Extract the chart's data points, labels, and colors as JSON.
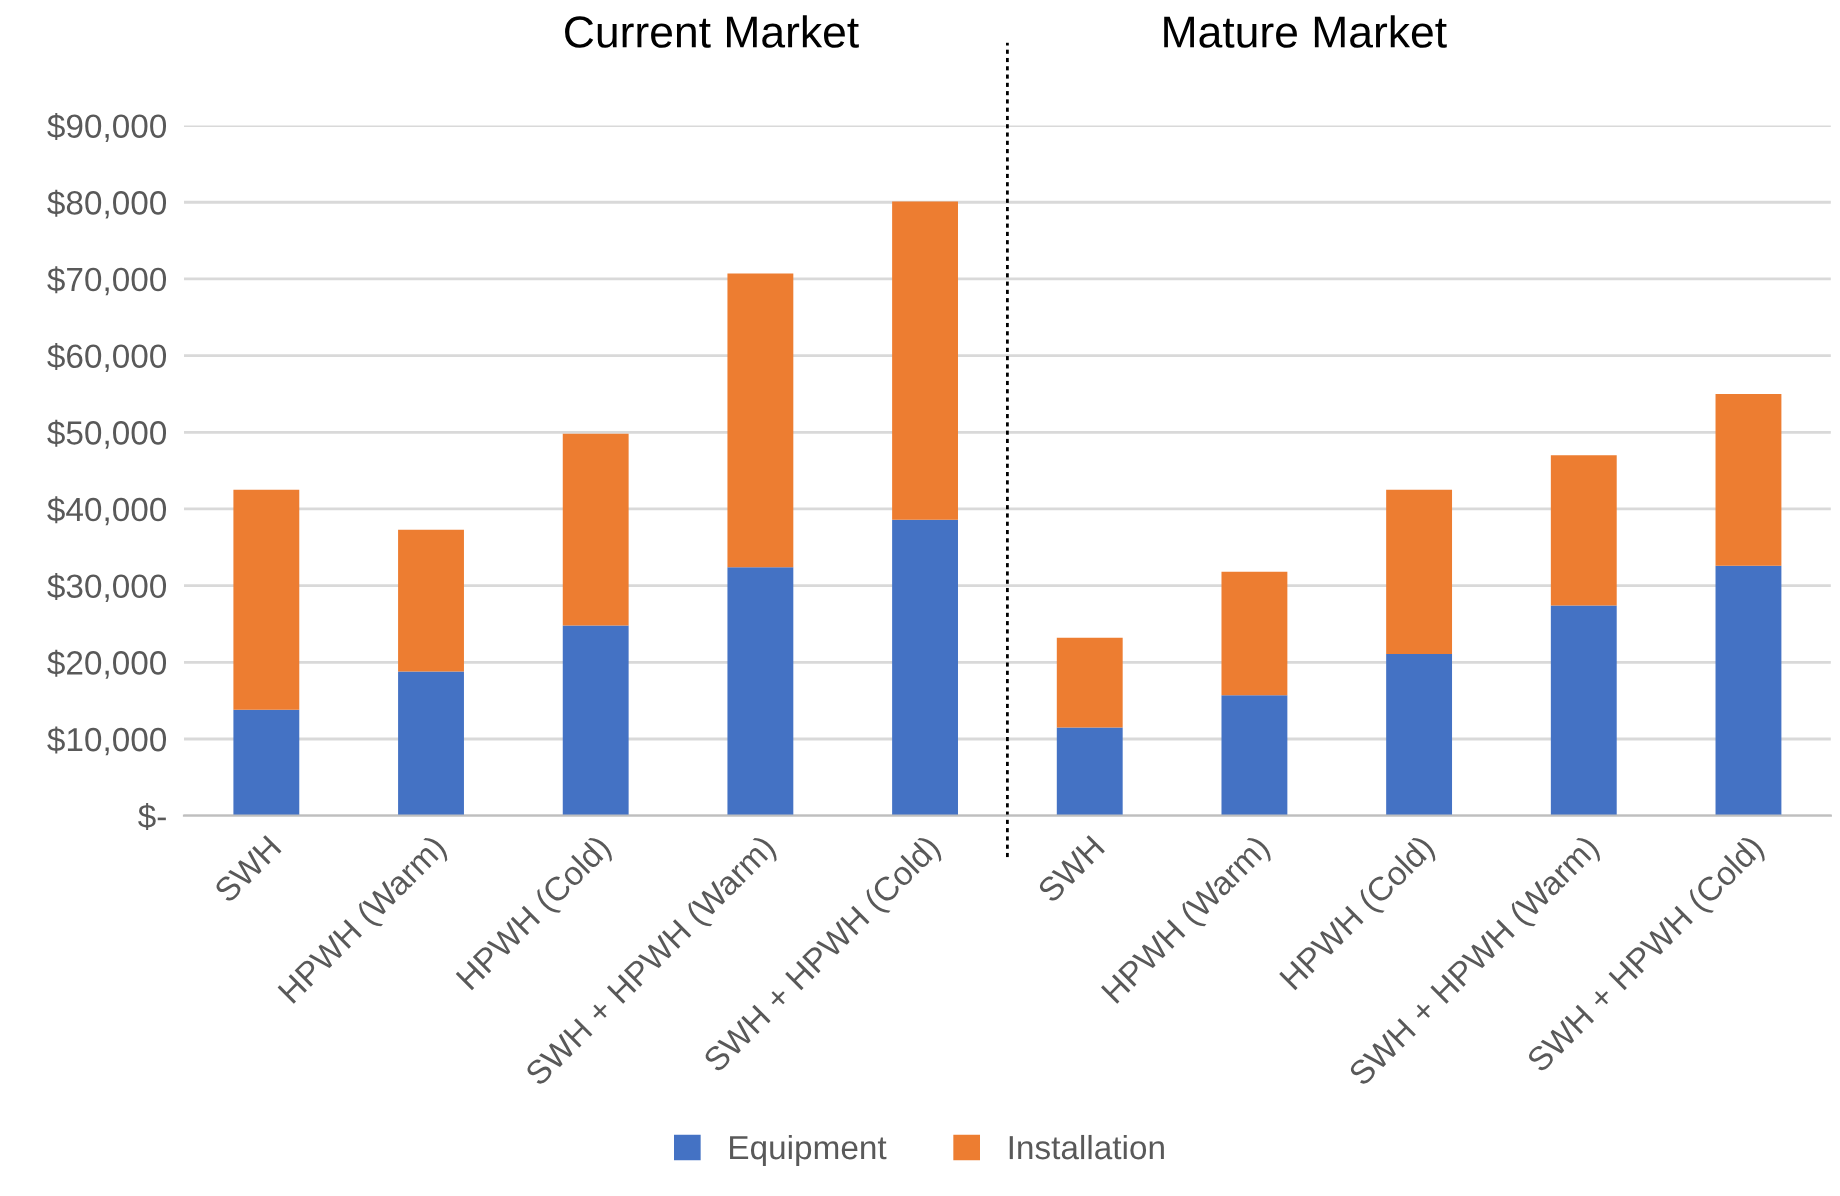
{
  "chart_data": {
    "type": "bar",
    "stacked": true,
    "categories": [
      "SWH",
      "HPWH (Warm)",
      "HPWH (Cold)",
      "SWH + HPWH (Warm)",
      "SWH + HPWH (Cold)",
      "SWH",
      "HPWH (Warm)",
      "HPWH (Cold)",
      "SWH + HPWH (Warm)",
      "SWH + HPWH (Cold)"
    ],
    "series": [
      {
        "name": "Equipment",
        "color": "#4472c4",
        "values": [
          13800,
          18800,
          24800,
          32400,
          38600,
          11500,
          15700,
          21100,
          27400,
          32600
        ]
      },
      {
        "name": "Installation",
        "color": "#ed7d31",
        "values": [
          28700,
          18500,
          25000,
          38300,
          41500,
          11700,
          16100,
          21400,
          19600,
          22400
        ]
      }
    ],
    "ylim": [
      0,
      90000
    ],
    "yticks": [
      {
        "value": 0,
        "label": "$-"
      },
      {
        "value": 10000,
        "label": "$10,000"
      },
      {
        "value": 20000,
        "label": "$20,000"
      },
      {
        "value": 30000,
        "label": "$30,000"
      },
      {
        "value": 40000,
        "label": "$40,000"
      },
      {
        "value": 50000,
        "label": "$50,000"
      },
      {
        "value": 60000,
        "label": "$60,000"
      },
      {
        "value": 70000,
        "label": "$70,000"
      },
      {
        "value": 80000,
        "label": "$80,000"
      },
      {
        "value": 90000,
        "label": "$90,000"
      }
    ],
    "annotations": [
      "Current Market",
      "Mature Market"
    ],
    "grid": "y",
    "legend": "bottom"
  }
}
